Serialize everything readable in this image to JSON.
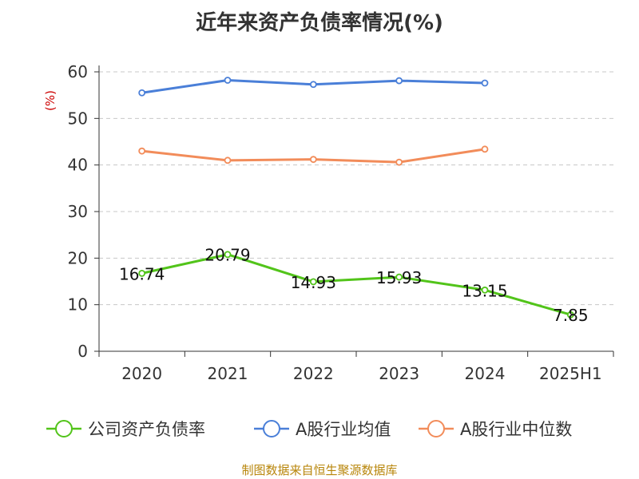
{
  "chart_data": {
    "type": "line",
    "title": "近年来资产负债率情况(%)",
    "ylabel": "(%)",
    "xlabel": "",
    "categories": [
      "2020",
      "2021",
      "2022",
      "2023",
      "2024",
      "2025H1"
    ],
    "ylim": [
      0,
      60
    ],
    "yticks": [
      0,
      10,
      20,
      30,
      40,
      50,
      60
    ],
    "grid": "horizontal dashed",
    "legend_position": "bottom",
    "series": [
      {
        "name": "公司资产负债率",
        "color": "#52c41a",
        "values": [
          16.74,
          20.79,
          14.93,
          15.93,
          13.15,
          7.85
        ],
        "data_labels": [
          "16.74",
          "20.79",
          "14.93",
          "15.93",
          "13.15",
          "7.85"
        ]
      },
      {
        "name": "A股行业均值",
        "color": "#4a7fd8",
        "values": [
          55.5,
          58.2,
          57.3,
          58.1,
          57.6,
          null
        ]
      },
      {
        "name": "A股行业中位数",
        "color": "#f28c5a",
        "values": [
          43.0,
          41.0,
          41.2,
          40.6,
          43.4,
          null
        ]
      }
    ]
  },
  "source": "制图数据来自恒生聚源数据库"
}
